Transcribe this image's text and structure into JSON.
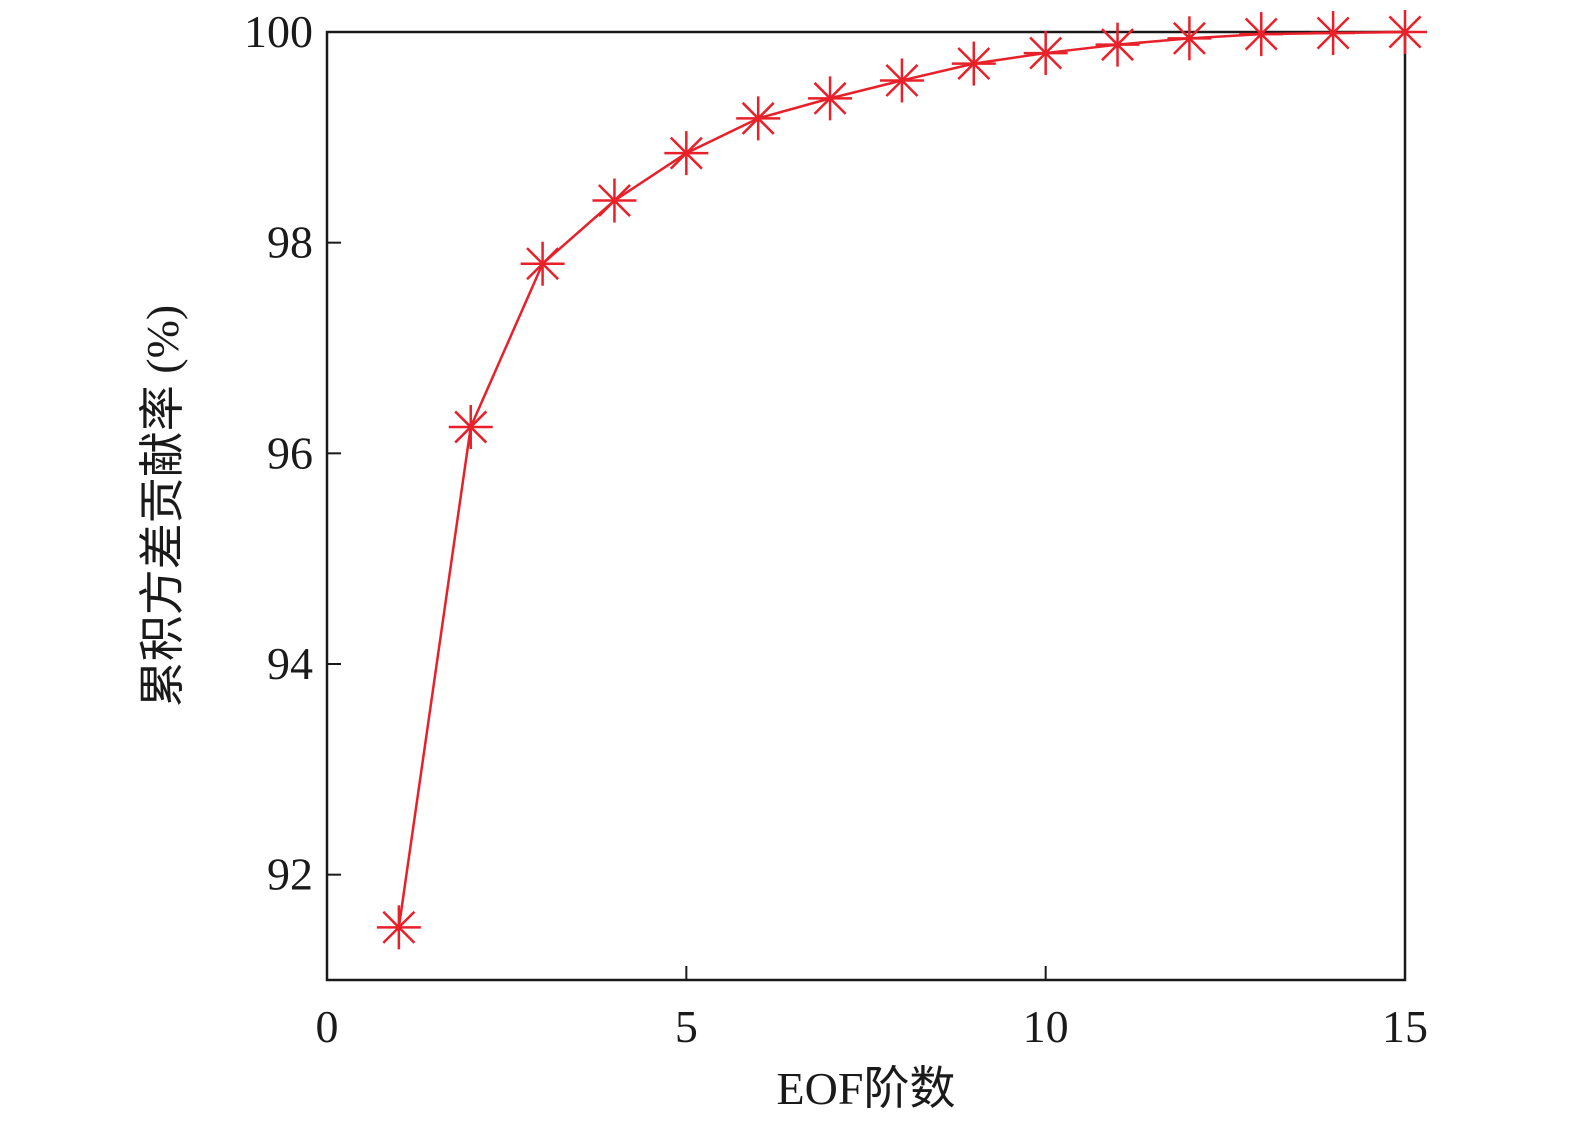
{
  "chart_data": {
    "type": "line",
    "title": "",
    "xlabel": "EOF阶数",
    "ylabel": "累积方差贡献率 (%)",
    "xlim": [
      0,
      15
    ],
    "ylim": [
      91,
      100
    ],
    "xticks": [
      0,
      5,
      10,
      15
    ],
    "yticks": [
      92,
      94,
      96,
      98,
      100
    ],
    "xtick_labels": [
      "0",
      "5",
      "10",
      "15"
    ],
    "ytick_labels": [
      "92",
      "94",
      "96",
      "98",
      "100"
    ],
    "grid": false,
    "legend": "none",
    "series": [
      {
        "marker": "asterisk",
        "color": "#e8202a",
        "x": [
          1,
          2,
          3,
          4,
          5,
          6,
          7,
          8,
          9,
          10,
          11,
          12,
          13,
          14,
          15
        ],
        "y": [
          91.5,
          96.25,
          97.8,
          98.4,
          98.85,
          99.18,
          99.37,
          99.54,
          99.7,
          99.8,
          99.88,
          99.94,
          99.98,
          99.99,
          100.0
        ]
      }
    ]
  }
}
